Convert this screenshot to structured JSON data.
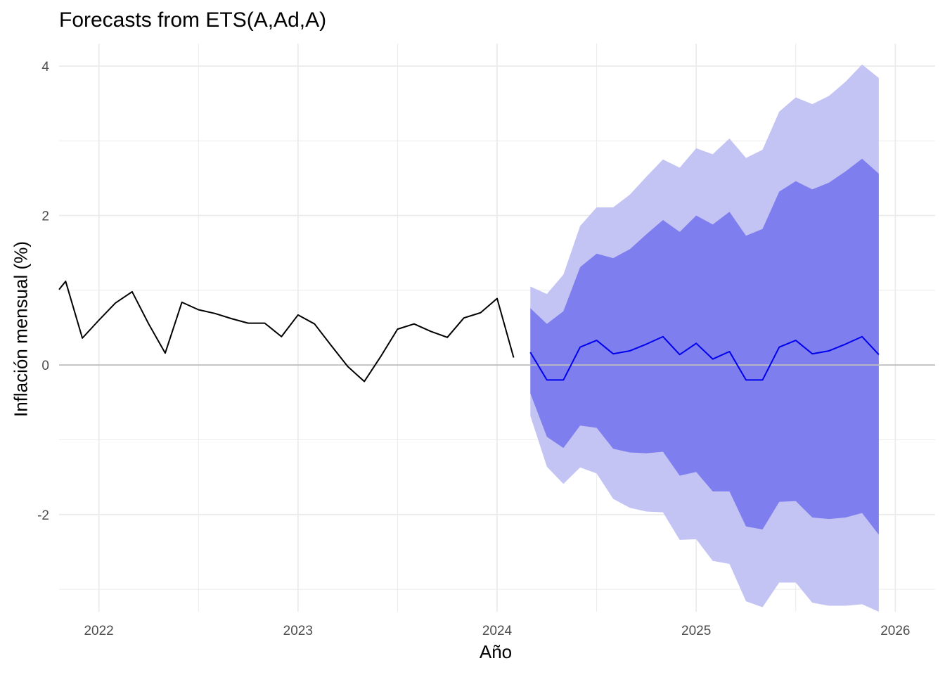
{
  "chart_data": {
    "type": "line",
    "title": "Forecasts from ETS(A,Ad,A)",
    "xlabel": "Año",
    "ylabel": "Inflación mensual (%)",
    "xlim": [
      2021.8,
      2026.2
    ],
    "ylim": [
      -3.3,
      4.3
    ],
    "x_ticks": [
      2022,
      2023,
      2024,
      2025,
      2026
    ],
    "y_ticks": [
      4,
      2,
      0,
      -2
    ],
    "y_tick_labels": [
      "4",
      "2",
      "0",
      "-2"
    ],
    "zero_line": true,
    "grid": true,
    "colors": {
      "observed": "#000000",
      "forecast": "#0000ee",
      "pi80": "#7e7eee",
      "pi95": "#c3c3f4",
      "grid": "#ebebeb",
      "zero": "#bebebe"
    },
    "observed": {
      "x": [
        2021.8,
        2021.833,
        2021.917,
        2022.0,
        2022.083,
        2022.167,
        2022.25,
        2022.333,
        2022.417,
        2022.5,
        2022.583,
        2022.667,
        2022.75,
        2022.833,
        2022.917,
        2023.0,
        2023.083,
        2023.167,
        2023.25,
        2023.333,
        2023.417,
        2023.5,
        2023.583,
        2023.667,
        2023.75,
        2023.833,
        2023.917,
        2024.0,
        2024.083
      ],
      "y": [
        1.01,
        1.12,
        0.36,
        0.6,
        0.83,
        0.98,
        0.55,
        0.16,
        0.84,
        0.74,
        0.69,
        0.62,
        0.56,
        0.56,
        0.38,
        0.67,
        0.55,
        0.26,
        -0.02,
        -0.22,
        0.12,
        0.48,
        0.55,
        0.45,
        0.37,
        0.63,
        0.7,
        0.89,
        0.1
      ]
    },
    "forecast": {
      "x": [
        2024.167,
        2024.25,
        2024.333,
        2024.417,
        2024.5,
        2024.583,
        2024.667,
        2024.75,
        2024.833,
        2024.917,
        2025.0,
        2025.083,
        2025.167,
        2025.25,
        2025.333,
        2025.417,
        2025.5,
        2025.583,
        2025.667,
        2025.75,
        2025.833,
        2025.917
      ],
      "mean": [
        0.17,
        -0.2,
        -0.2,
        0.24,
        0.33,
        0.15,
        0.19,
        0.28,
        0.38,
        0.14,
        0.29,
        0.08,
        0.18,
        -0.2,
        -0.2,
        0.24,
        0.33,
        0.15,
        0.19,
        0.28,
        0.38,
        0.14
      ],
      "lo80": [
        -0.38,
        -0.96,
        -1.11,
        -0.81,
        -0.84,
        -1.12,
        -1.17,
        -1.18,
        -1.16,
        -1.48,
        -1.43,
        -1.69,
        -1.69,
        -2.16,
        -2.2,
        -1.83,
        -1.82,
        -2.04,
        -2.06,
        -2.04,
        -1.98,
        -2.27
      ],
      "hi80": [
        0.76,
        0.55,
        0.72,
        1.31,
        1.49,
        1.43,
        1.55,
        1.75,
        1.94,
        1.78,
        2.0,
        1.88,
        2.05,
        1.73,
        1.82,
        2.32,
        2.46,
        2.35,
        2.44,
        2.59,
        2.76,
        2.56
      ],
      "lo95": [
        -0.68,
        -1.36,
        -1.59,
        -1.37,
        -1.45,
        -1.79,
        -1.91,
        -1.96,
        -1.97,
        -2.34,
        -2.33,
        -2.62,
        -2.66,
        -3.16,
        -3.24,
        -2.91,
        -2.91,
        -3.18,
        -3.22,
        -3.22,
        -3.2,
        -3.3
      ],
      "hi95": [
        1.05,
        0.95,
        1.21,
        1.86,
        2.11,
        2.11,
        2.28,
        2.52,
        2.75,
        2.64,
        2.9,
        2.82,
        3.03,
        2.77,
        2.88,
        3.39,
        3.58,
        3.49,
        3.6,
        3.79,
        4.02,
        3.84
      ]
    }
  }
}
